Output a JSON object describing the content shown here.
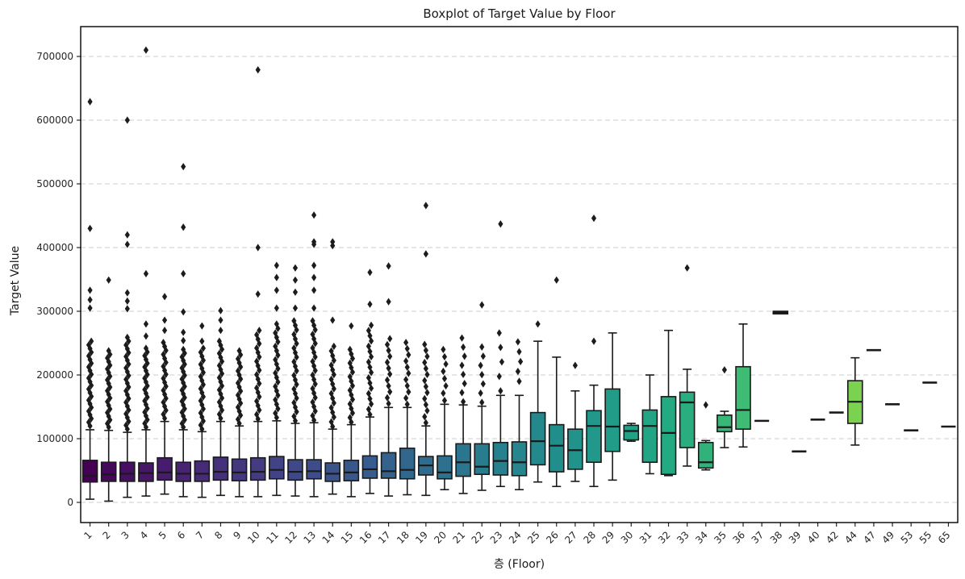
{
  "figure": {
    "title": "Boxplot of Target Value by Floor",
    "xlabel": "층 (Floor)",
    "ylabel": "Target Value"
  },
  "chart_data": {
    "type": "boxplot",
    "title": "Boxplot of Target Value by Floor",
    "xlabel": "층 (Floor)",
    "ylabel": "Target Value",
    "legend": "none",
    "grid": "horizontal dashed",
    "ylim": [
      -32000,
      748000
    ],
    "yticks": [
      0,
      100000,
      200000,
      300000,
      400000,
      500000,
      600000,
      700000
    ],
    "ytick_labels": [
      "0",
      "100000",
      "200000",
      "300000",
      "400000",
      "500000",
      "600000",
      "700000"
    ],
    "colors": {
      "background": "#ffffff",
      "spine": "#000000",
      "grid": "#cccccc",
      "box_edge": "#1a1a1a",
      "median": "#1a1a1a",
      "whisker": "#1a1a1a",
      "outlier": "#1c1c1c",
      "tick_text": "#262626"
    },
    "palette_name": "viridis",
    "palette_stops": [
      "#440154",
      "#482475",
      "#414487",
      "#355f8d",
      "#2a788e",
      "#21918c",
      "#22a884",
      "#44bf70",
      "#7ad151",
      "#bddf26",
      "#fde725"
    ],
    "palette_span": 0.9,
    "boxes": [
      {
        "floor": "1",
        "whislo": 5000,
        "q1": 32000,
        "med": 42000,
        "q3": 66000,
        "whishi": 114000,
        "band": [
          120000,
          253000,
          24
        ],
        "outliers": [
          305000,
          318000,
          333000,
          430000,
          629000
        ]
      },
      {
        "floor": "2",
        "whislo": 2000,
        "q1": 33000,
        "med": 44000,
        "q3": 63000,
        "whishi": 113000,
        "band": [
          118000,
          238000,
          22
        ],
        "outliers": [
          349000
        ]
      },
      {
        "floor": "3",
        "whislo": 8000,
        "q1": 33000,
        "med": 45000,
        "q3": 63000,
        "whishi": 110000,
        "band": [
          115000,
          259000,
          25
        ],
        "outliers": [
          304000,
          316000,
          329000,
          405000,
          420000,
          600000
        ]
      },
      {
        "floor": "4",
        "whislo": 10000,
        "q1": 33000,
        "med": 46000,
        "q3": 62000,
        "whishi": 114000,
        "band": [
          118000,
          242000,
          22
        ],
        "outliers": [
          261000,
          280000,
          359000,
          710000
        ]
      },
      {
        "floor": "5",
        "whislo": 13000,
        "q1": 35000,
        "med": 47000,
        "q3": 70000,
        "whishi": 127000,
        "band": [
          132000,
          251000,
          20
        ],
        "outliers": [
          270000,
          286000,
          323000
        ]
      },
      {
        "floor": "6",
        "whislo": 9000,
        "q1": 33000,
        "med": 45000,
        "q3": 63000,
        "whishi": 114000,
        "band": [
          118000,
          240000,
          22
        ],
        "outliers": [
          254000,
          267000,
          299000,
          359000,
          432000,
          527000
        ]
      },
      {
        "floor": "7",
        "whislo": 8000,
        "q1": 33000,
        "med": 45000,
        "q3": 65000,
        "whishi": 111000,
        "band": [
          115000,
          242000,
          21
        ],
        "outliers": [
          253000,
          277000
        ]
      },
      {
        "floor": "8",
        "whislo": 11000,
        "q1": 35000,
        "med": 48000,
        "q3": 71000,
        "whishi": 127000,
        "band": [
          132000,
          253000,
          20
        ],
        "outliers": [
          270000,
          286000,
          301000
        ]
      },
      {
        "floor": "9",
        "whislo": 9000,
        "q1": 34000,
        "med": 47000,
        "q3": 68000,
        "whishi": 120000,
        "band": [
          124000,
          238000,
          19
        ],
        "outliers": []
      },
      {
        "floor": "10",
        "whislo": 9000,
        "q1": 35000,
        "med": 48000,
        "q3": 70000,
        "whishi": 127000,
        "band": [
          131000,
          270000,
          21
        ],
        "outliers": [
          327000,
          400000,
          679000
        ]
      },
      {
        "floor": "11",
        "whislo": 11000,
        "q1": 37000,
        "med": 51000,
        "q3": 72000,
        "whishi": 128000,
        "band": [
          133000,
          280000,
          22
        ],
        "outliers": [
          305000,
          333000,
          353000,
          372000
        ]
      },
      {
        "floor": "12",
        "whislo": 10000,
        "q1": 35000,
        "med": 48000,
        "q3": 67000,
        "whishi": 124000,
        "band": [
          128000,
          285000,
          23
        ],
        "outliers": [
          305000,
          330000,
          349000,
          368000
        ]
      },
      {
        "floor": "13",
        "whislo": 9000,
        "q1": 37000,
        "med": 49000,
        "q3": 67000,
        "whishi": 125000,
        "band": [
          129000,
          285000,
          23
        ],
        "outliers": [
          305000,
          333000,
          353000,
          372000,
          405000,
          409000,
          451000
        ]
      },
      {
        "floor": "14",
        "whislo": 13000,
        "q1": 33000,
        "med": 45000,
        "q3": 62000,
        "whishi": 115000,
        "band": [
          119000,
          245000,
          18
        ],
        "outliers": [
          286000,
          403000,
          409000
        ]
      },
      {
        "floor": "15",
        "whislo": 9000,
        "q1": 34000,
        "med": 47000,
        "q3": 66000,
        "whishi": 122000,
        "band": [
          126000,
          240000,
          17
        ],
        "outliers": [
          277000
        ]
      },
      {
        "floor": "16",
        "whislo": 14000,
        "q1": 38000,
        "med": 52000,
        "q3": 73000,
        "whishi": 134000,
        "band": [
          138000,
          278000,
          18
        ],
        "outliers": [
          311000,
          361000
        ]
      },
      {
        "floor": "17",
        "whislo": 10000,
        "q1": 38000,
        "med": 49000,
        "q3": 78000,
        "whishi": 149000,
        "band": [
          155000,
          257000,
          12
        ],
        "outliers": [
          315000,
          371000
        ]
      },
      {
        "floor": "18",
        "whislo": 12000,
        "q1": 37000,
        "med": 51000,
        "q3": 85000,
        "whishi": 149000,
        "band": [
          154000,
          251000,
          11
        ],
        "outliers": []
      },
      {
        "floor": "19",
        "whislo": 11000,
        "q1": 43000,
        "med": 58000,
        "q3": 72000,
        "whishi": 120000,
        "band": [
          125000,
          248000,
          14
        ],
        "outliers": [
          390000,
          466000
        ]
      },
      {
        "floor": "20",
        "whislo": 20000,
        "q1": 37000,
        "med": 47000,
        "q3": 73000,
        "whishi": 154000,
        "band": [
          160000,
          240000,
          8
        ],
        "outliers": []
      },
      {
        "floor": "21",
        "whislo": 14000,
        "q1": 41000,
        "med": 63000,
        "q3": 92000,
        "whishi": 153000,
        "band": [
          158000,
          258000,
          8
        ],
        "outliers": []
      },
      {
        "floor": "22",
        "whislo": 19000,
        "q1": 44000,
        "med": 56000,
        "q3": 92000,
        "whishi": 151000,
        "band": [
          157000,
          244000,
          7
        ],
        "outliers": [
          310000
        ]
      },
      {
        "floor": "23",
        "whislo": 25000,
        "q1": 43000,
        "med": 65000,
        "q3": 94000,
        "whishi": 168000,
        "band": [
          175000,
          266000,
          5
        ],
        "outliers": [
          437000
        ]
      },
      {
        "floor": "24",
        "whislo": 20000,
        "q1": 42000,
        "med": 63000,
        "q3": 95000,
        "whishi": 168000,
        "band": [
          190000,
          252000,
          5
        ],
        "outliers": []
      },
      {
        "floor": "25",
        "whislo": 32000,
        "q1": 59000,
        "med": 96000,
        "q3": 141000,
        "whishi": 253000,
        "band": null,
        "outliers": [
          280000
        ]
      },
      {
        "floor": "26",
        "whislo": 25000,
        "q1": 48000,
        "med": 89000,
        "q3": 122000,
        "whishi": 228000,
        "band": null,
        "outliers": [
          349000
        ]
      },
      {
        "floor": "27",
        "whislo": 33000,
        "q1": 52000,
        "med": 82000,
        "q3": 115000,
        "whishi": 175000,
        "band": null,
        "outliers": [
          215000
        ]
      },
      {
        "floor": "28",
        "whislo": 25000,
        "q1": 63000,
        "med": 120000,
        "q3": 144000,
        "whishi": 184000,
        "band": null,
        "outliers": [
          253000,
          446000
        ]
      },
      {
        "floor": "29",
        "whislo": 35000,
        "q1": 80000,
        "med": 119000,
        "q3": 178000,
        "whishi": 266000,
        "band": null,
        "outliers": []
      },
      {
        "floor": "30",
        "whislo": 96000,
        "q1": 98000,
        "med": 112000,
        "q3": 121000,
        "whishi": 124000,
        "band": null,
        "outliers": []
      },
      {
        "floor": "31",
        "whislo": 45000,
        "q1": 63000,
        "med": 120000,
        "q3": 145000,
        "whishi": 200000,
        "band": null,
        "outliers": []
      },
      {
        "floor": "32",
        "whislo": 42000,
        "q1": 44000,
        "med": 109000,
        "q3": 166000,
        "whishi": 270000,
        "band": null,
        "outliers": []
      },
      {
        "floor": "33",
        "whislo": 57000,
        "q1": 86000,
        "med": 157000,
        "q3": 173000,
        "whishi": 209000,
        "band": null,
        "outliers": [
          368000
        ]
      },
      {
        "floor": "34",
        "whislo": 51000,
        "q1": 54000,
        "med": 63000,
        "q3": 94000,
        "whishi": 97000,
        "band": null,
        "outliers": [
          153000
        ]
      },
      {
        "floor": "35",
        "whislo": 86000,
        "q1": 111000,
        "med": 118000,
        "q3": 137000,
        "whishi": 143000,
        "band": null,
        "outliers": [
          208000
        ]
      },
      {
        "floor": "36",
        "whislo": 87000,
        "q1": 115000,
        "med": 145000,
        "q3": 213000,
        "whishi": 280000,
        "band": null,
        "outliers": []
      },
      {
        "floor": "37",
        "whislo": 128000,
        "q1": 128000,
        "med": 128000,
        "q3": 128000,
        "whishi": 128000,
        "band": null,
        "outliers": []
      },
      {
        "floor": "38",
        "whislo": 296000,
        "q1": 296000,
        "med": 298000,
        "q3": 300000,
        "whishi": 300000,
        "band": null,
        "outliers": []
      },
      {
        "floor": "39",
        "whislo": 80000,
        "q1": 80000,
        "med": 80000,
        "q3": 80000,
        "whishi": 80000,
        "band": null,
        "outliers": []
      },
      {
        "floor": "40",
        "whislo": 130000,
        "q1": 130000,
        "med": 130000,
        "q3": 130000,
        "whishi": 130000,
        "band": null,
        "outliers": []
      },
      {
        "floor": "42",
        "whislo": 141000,
        "q1": 141000,
        "med": 141000,
        "q3": 141000,
        "whishi": 141000,
        "band": null,
        "outliers": []
      },
      {
        "floor": "44",
        "whislo": 90000,
        "q1": 124000,
        "med": 158000,
        "q3": 191000,
        "whishi": 227000,
        "band": null,
        "outliers": []
      },
      {
        "floor": "47",
        "whislo": 239000,
        "q1": 239000,
        "med": 239000,
        "q3": 239000,
        "whishi": 239000,
        "band": null,
        "outliers": []
      },
      {
        "floor": "49",
        "whislo": 154000,
        "q1": 154000,
        "med": 154000,
        "q3": 154000,
        "whishi": 154000,
        "band": null,
        "outliers": []
      },
      {
        "floor": "53",
        "whislo": 113000,
        "q1": 113000,
        "med": 113000,
        "q3": 113000,
        "whishi": 113000,
        "band": null,
        "outliers": []
      },
      {
        "floor": "55",
        "whislo": 188000,
        "q1": 188000,
        "med": 188000,
        "q3": 188000,
        "whishi": 188000,
        "band": null,
        "outliers": []
      },
      {
        "floor": "65",
        "whislo": 119000,
        "q1": 119000,
        "med": 119000,
        "q3": 119000,
        "whishi": 119000,
        "band": null,
        "outliers": []
      }
    ]
  }
}
